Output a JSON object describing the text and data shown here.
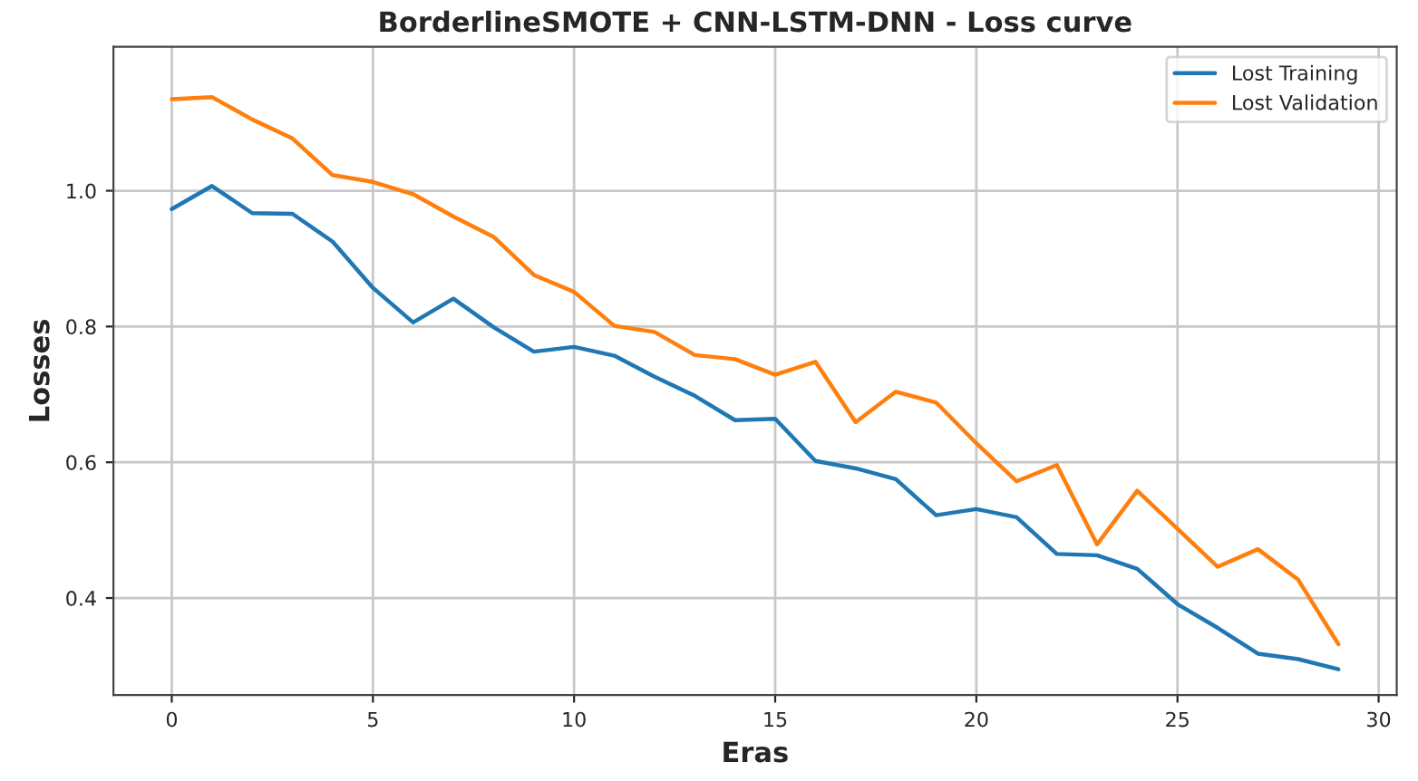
{
  "chart_data": {
    "type": "line",
    "title": "BorderlineSMOTE + CNN-LSTM-DNN - Loss curve",
    "xlabel": "Eras",
    "ylabel": "Losses",
    "x": [
      0,
      1,
      2,
      3,
      4,
      5,
      6,
      7,
      8,
      9,
      10,
      11,
      12,
      13,
      14,
      15,
      16,
      17,
      18,
      19,
      20,
      21,
      22,
      23,
      24,
      25,
      26,
      27,
      28,
      29
    ],
    "series": [
      {
        "name": "Lost Training",
        "color": "#1f77b4",
        "values": [
          0.973,
          1.007,
          0.967,
          0.966,
          0.925,
          0.857,
          0.806,
          0.841,
          0.799,
          0.763,
          0.77,
          0.757,
          0.726,
          0.698,
          0.662,
          0.664,
          0.602,
          0.591,
          0.575,
          0.522,
          0.531,
          0.519,
          0.465,
          0.463,
          0.443,
          0.391,
          0.356,
          0.318,
          0.31,
          0.295
        ]
      },
      {
        "name": "Lost Validation",
        "color": "#ff7f0e",
        "values": [
          1.135,
          1.138,
          1.105,
          1.077,
          1.023,
          1.013,
          0.995,
          0.962,
          0.932,
          0.876,
          0.851,
          0.801,
          0.792,
          0.758,
          0.752,
          0.729,
          0.748,
          0.659,
          0.704,
          0.688,
          0.628,
          0.572,
          0.596,
          0.479,
          0.558,
          0.502,
          0.446,
          0.472,
          0.427,
          0.332
        ]
      }
    ],
    "xlim": [
      -1.45,
      30.45
    ],
    "ylim": [
      0.257,
      1.212
    ],
    "xticks": [
      0,
      5,
      10,
      15,
      20,
      25,
      30
    ],
    "yticks": [
      0.4,
      0.6,
      0.8,
      {
        "value": 1.0,
        "label": "1.0"
      }
    ],
    "grid": true,
    "legend": "top right",
    "marker": "none",
    "line_style": "solid"
  }
}
